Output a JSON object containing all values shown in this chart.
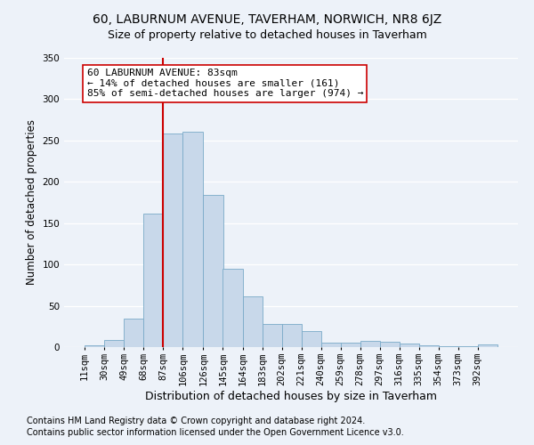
{
  "title1": "60, LABURNUM AVENUE, TAVERHAM, NORWICH, NR8 6JZ",
  "title2": "Size of property relative to detached houses in Taverham",
  "xlabel": "Distribution of detached houses by size in Taverham",
  "ylabel": "Number of detached properties",
  "footer1": "Contains HM Land Registry data © Crown copyright and database right 2024.",
  "footer2": "Contains public sector information licensed under the Open Government Licence v3.0.",
  "annotation_title": "60 LABURNUM AVENUE: 83sqm",
  "annotation_line1": "← 14% of detached houses are smaller (161)",
  "annotation_line2": "85% of semi-detached houses are larger (974) →",
  "bar_labels": [
    "11sqm",
    "30sqm",
    "49sqm",
    "68sqm",
    "87sqm",
    "106sqm",
    "126sqm",
    "145sqm",
    "164sqm",
    "183sqm",
    "202sqm",
    "221sqm",
    "240sqm",
    "259sqm",
    "278sqm",
    "297sqm",
    "316sqm",
    "335sqm",
    "354sqm",
    "373sqm",
    "392sqm"
  ],
  "bar_values": [
    2,
    9,
    35,
    162,
    258,
    261,
    184,
    95,
    61,
    28,
    28,
    19,
    5,
    5,
    8,
    6,
    4,
    2,
    1,
    1,
    3
  ],
  "bar_edges": [
    11,
    30,
    49,
    68,
    87,
    106,
    126,
    145,
    164,
    183,
    202,
    221,
    240,
    259,
    278,
    297,
    316,
    335,
    354,
    373,
    392,
    411
  ],
  "bar_color": "#c8d8ea",
  "bar_edge_color": "#7aaac8",
  "vline_color": "#cc0000",
  "vline_x": 87,
  "ylim": [
    0,
    350
  ],
  "yticks": [
    0,
    50,
    100,
    150,
    200,
    250,
    300,
    350
  ],
  "bg_color": "#edf2f9",
  "plot_bg_color": "#edf2f9",
  "grid_color": "#ffffff",
  "annotation_box_color": "#ffffff",
  "annotation_border_color": "#cc0000",
  "title1_fontsize": 10,
  "title2_fontsize": 9,
  "xlabel_fontsize": 9,
  "ylabel_fontsize": 8.5,
  "tick_fontsize": 7.5,
  "annotation_fontsize": 8,
  "footer_fontsize": 7
}
